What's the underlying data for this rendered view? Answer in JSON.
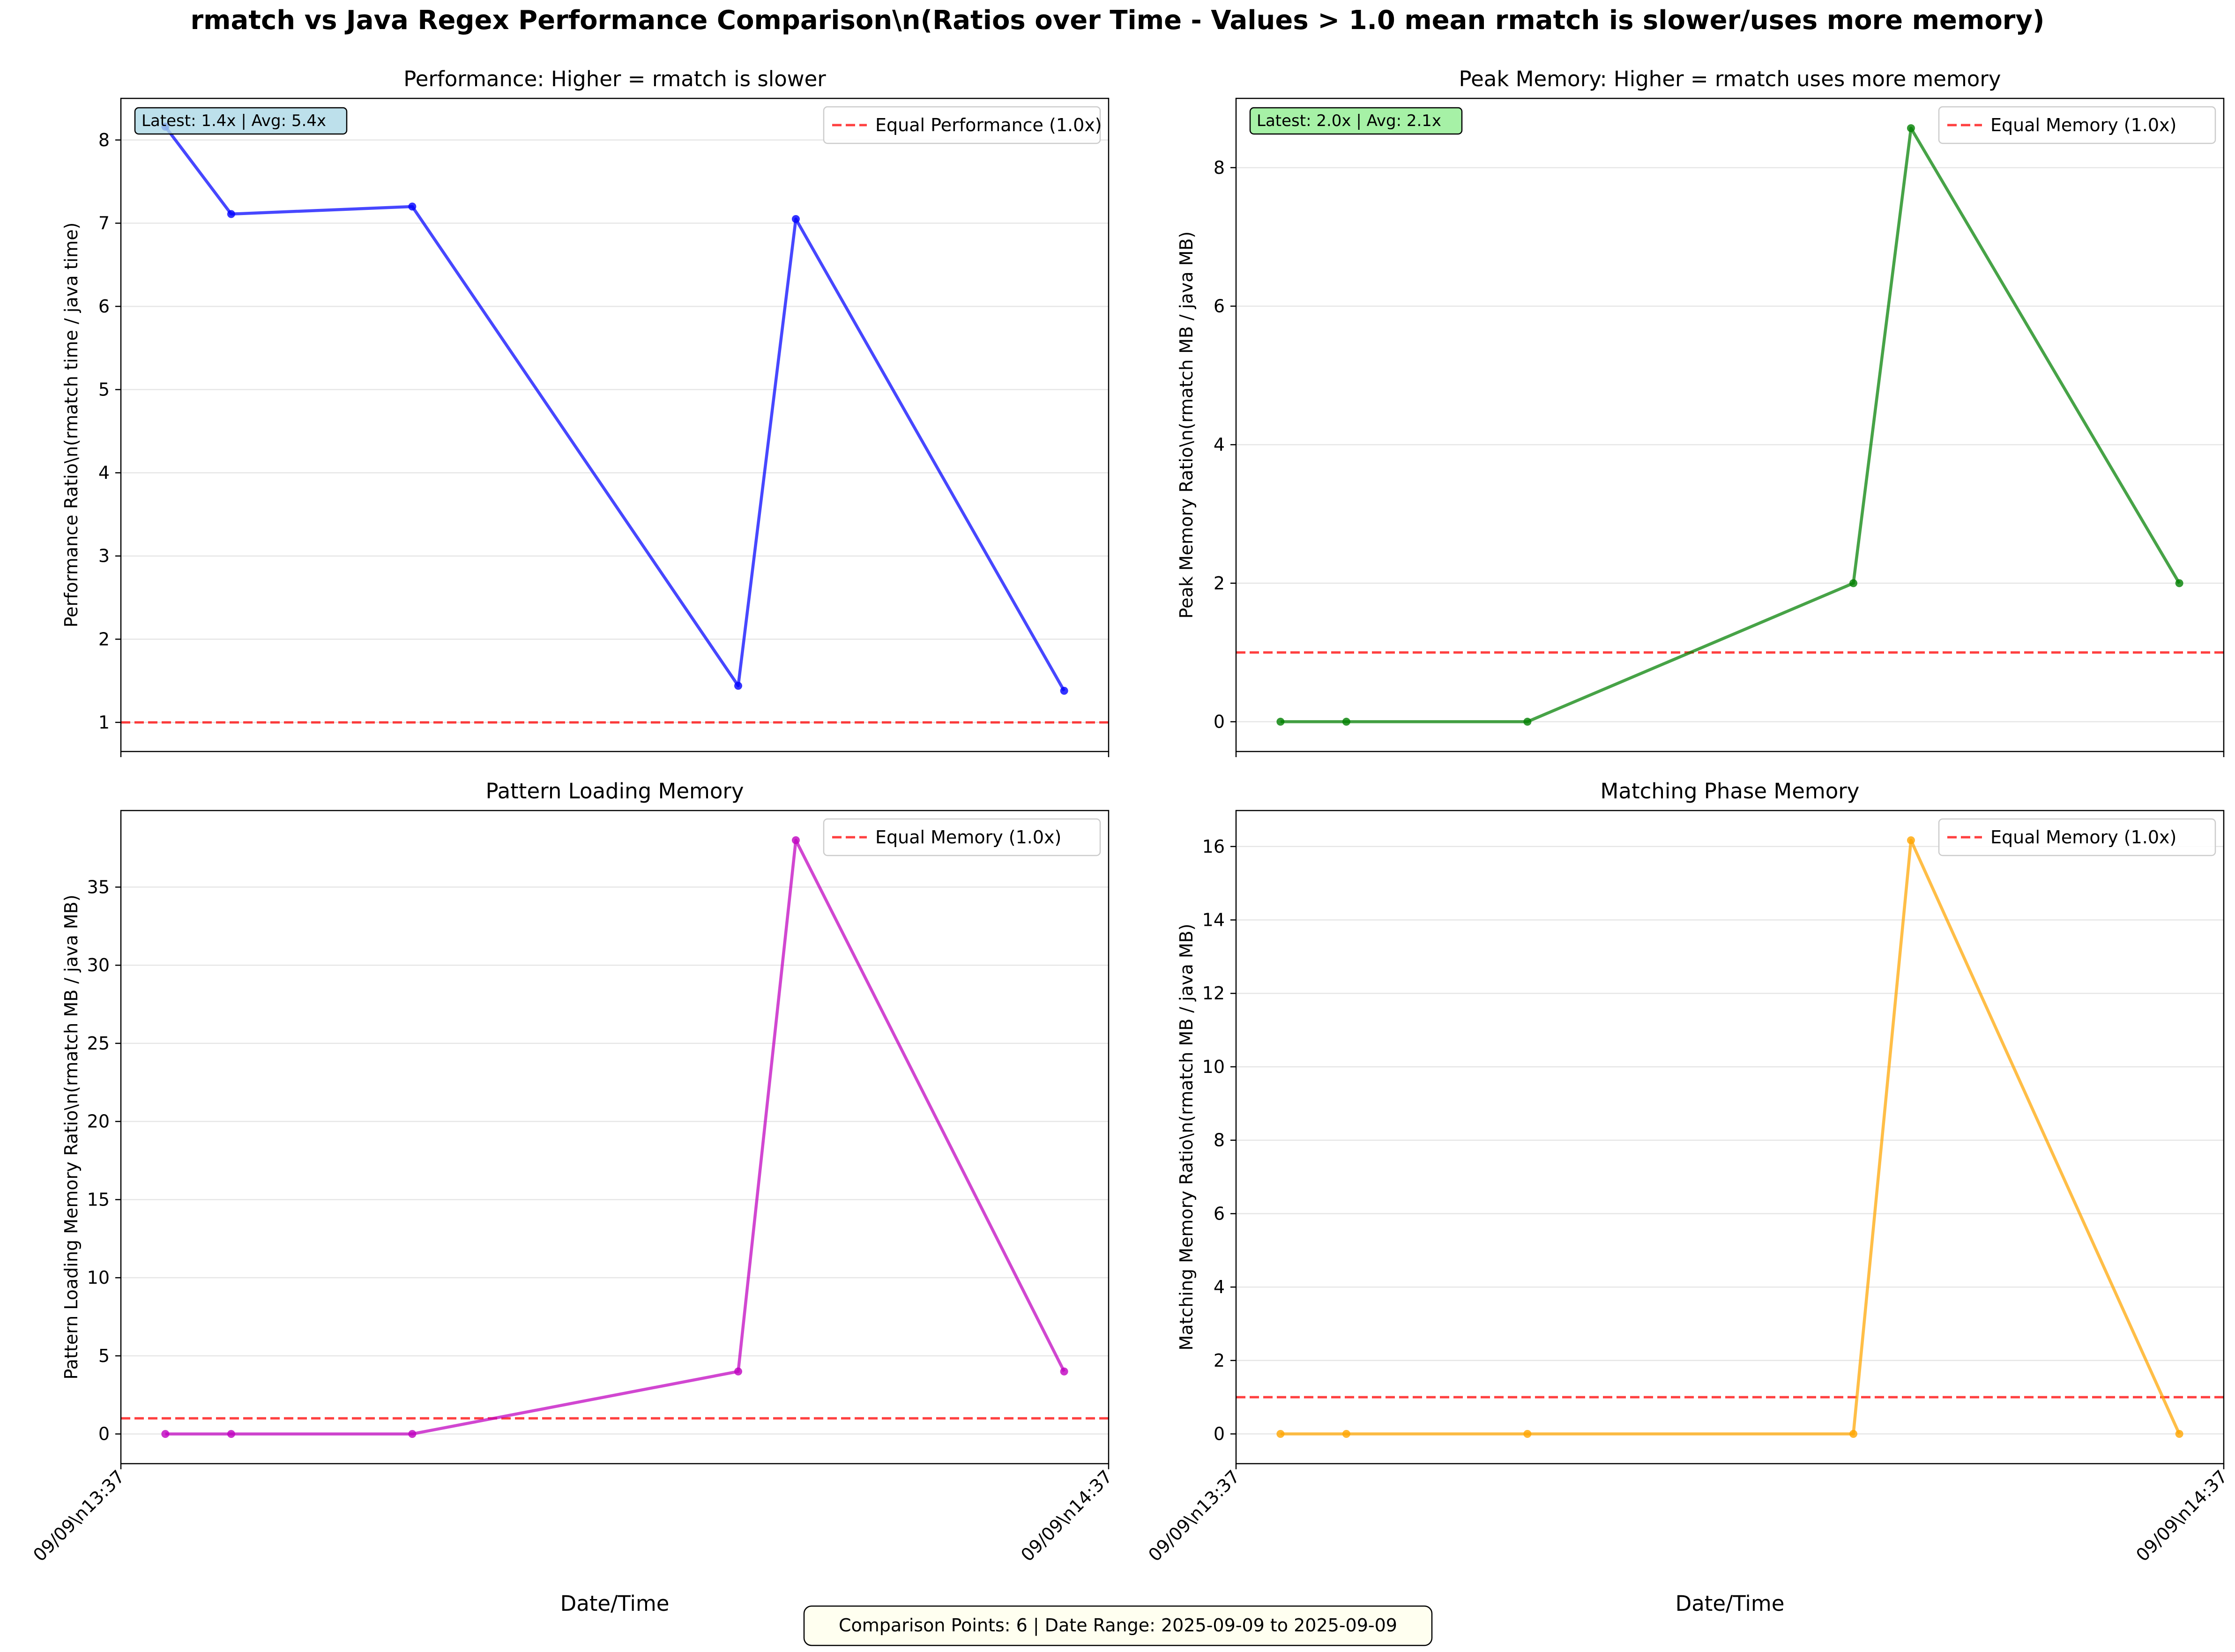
{
  "figure": {
    "suptitle": "rmatch vs Java Regex Performance Comparison\\n(Ratios over Time - Values > 1.0 mean rmatch is slower/uses more memory)",
    "footer": "Comparison Points: 6 | Date Range: 2025-09-09 to 2025-09-09",
    "x_axis_label": "Date/Time",
    "x_ticks": [
      "09/09\\n13:37",
      "09/09\\n14:37"
    ]
  },
  "chart_data": [
    {
      "type": "line",
      "title": "Performance: Higher = rmatch is slower",
      "ylabel": "Performance Ratio\\n(rmatch time / java time)",
      "x_minutes": [
        2.7,
        6.7,
        17.7,
        37.5,
        41,
        57.3
      ],
      "values": [
        8.16,
        7.11,
        7.2,
        1.44,
        7.05,
        1.38
      ],
      "xlim": [
        0,
        60
      ],
      "ylim": [
        0.65,
        8.5
      ],
      "yticks": [
        1,
        2,
        3,
        4,
        5,
        6,
        7,
        8
      ],
      "color": "#0000ff",
      "ref_line": {
        "value": 1.0,
        "label": "Equal Performance (1.0x)",
        "color": "#ff0000"
      },
      "stats_box": {
        "text": "Latest: 1.4x | Avg: 5.4x",
        "color": "#add8e6"
      },
      "show_x_ticklabels": false,
      "show_xlabel": false
    },
    {
      "type": "line",
      "title": "Peak Memory: Higher = rmatch uses more memory",
      "ylabel": "Peak Memory Ratio\\n(rmatch MB / java MB)",
      "x_minutes": [
        2.7,
        6.7,
        17.7,
        37.5,
        41,
        57.3
      ],
      "values": [
        0.0,
        0.0,
        0.0,
        2.0,
        8.57,
        2.0
      ],
      "xlim": [
        0,
        60
      ],
      "ylim": [
        -0.43,
        9.0
      ],
      "yticks": [
        0,
        2,
        4,
        6,
        8
      ],
      "color": "#008000",
      "ref_line": {
        "value": 1.0,
        "label": "Equal Memory (1.0x)",
        "color": "#ff0000"
      },
      "stats_box": {
        "text": "Latest: 2.0x | Avg: 2.1x",
        "color": "#90ee90"
      },
      "show_x_ticklabels": false,
      "show_xlabel": false
    },
    {
      "type": "line",
      "title": "Pattern Loading Memory",
      "ylabel": "Pattern Loading Memory Ratio\\n(rmatch MB / java MB)",
      "x_minutes": [
        2.7,
        6.7,
        17.7,
        37.5,
        41,
        57.3
      ],
      "values": [
        0.0,
        0.0,
        0.0,
        4.0,
        38.0,
        4.0
      ],
      "xlim": [
        0,
        60
      ],
      "ylim": [
        -1.9,
        39.9
      ],
      "yticks": [
        0,
        5,
        10,
        15,
        20,
        25,
        30,
        35
      ],
      "color": "#bf00bf",
      "ref_line": {
        "value": 1.0,
        "label": "Equal Memory (1.0x)",
        "color": "#ff0000"
      },
      "stats_box": null,
      "show_x_ticklabels": true,
      "show_xlabel": true
    },
    {
      "type": "line",
      "title": "Matching Phase Memory",
      "ylabel": "Matching Memory Ratio\\n(rmatch MB / java MB)",
      "x_minutes": [
        2.7,
        6.7,
        17.7,
        37.5,
        41,
        57.3
      ],
      "values": [
        0.0,
        0.0,
        0.0,
        0.0,
        16.17,
        0.0
      ],
      "xlim": [
        0,
        60
      ],
      "ylim": [
        -0.81,
        16.98
      ],
      "yticks": [
        0,
        2,
        4,
        6,
        8,
        10,
        12,
        14,
        16
      ],
      "color": "#ffa500",
      "ref_line": {
        "value": 1.0,
        "label": "Equal Memory (1.0x)",
        "color": "#ff0000"
      },
      "stats_box": null,
      "show_x_ticklabels": true,
      "show_xlabel": true
    }
  ]
}
